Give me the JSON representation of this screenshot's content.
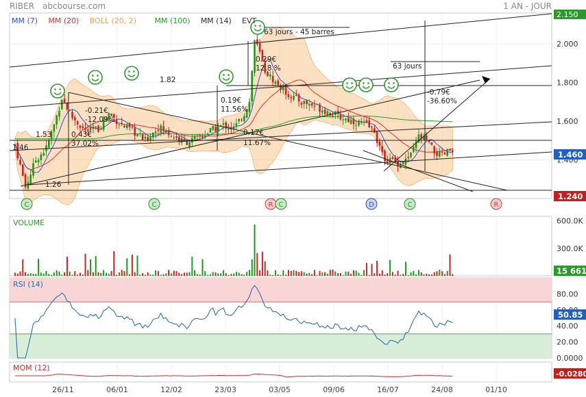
{
  "header": {
    "symbol": "RIBER",
    "source": "abcbourse.com",
    "period": "1 AN - JOUR"
  },
  "legend": [
    {
      "label": "MM (7)",
      "color": "#3050d0"
    },
    {
      "label": "MM (20)",
      "color": "#e03030"
    },
    {
      "label": "BOLL (20, 2)",
      "color": "#f0a050"
    },
    {
      "label": "MM (100)",
      "color": "#20a020"
    },
    {
      "label": "MM (14)",
      "color": "#303030"
    },
    {
      "label": "EVT",
      "color": "#303030"
    }
  ],
  "colors": {
    "up": "#1a9a1a",
    "down": "#d02020",
    "boll": "#f7c98f",
    "mm7": "#3050d0",
    "mm20": "#e03030",
    "mm100": "#20a020",
    "rsi": "#2060b0",
    "mom": "#c03030",
    "smiley": "#2a9a2a"
  },
  "chart_data": [
    {
      "type": "candlestick",
      "name": "price",
      "ylim": [
        1.2,
        2.16
      ],
      "y_ticks": [
        "2.000",
        "1.800",
        "1.600",
        "1.400"
      ],
      "x_ticks": [
        "26/11",
        "06/01",
        "12/02",
        "23/03",
        "03/05",
        "09/06",
        "16/07",
        "24/08",
        "01/10"
      ],
      "last_label": "1.460",
      "top_label": "2.150",
      "support_label": "1.240",
      "keyframes": [
        [
          0,
          1.48
        ],
        [
          4,
          1.26
        ],
        [
          8,
          1.4
        ],
        [
          12,
          1.46
        ],
        [
          15,
          1.58
        ],
        [
          18,
          1.72
        ],
        [
          22,
          1.62
        ],
        [
          27,
          1.55
        ],
        [
          32,
          1.56
        ],
        [
          36,
          1.64
        ],
        [
          41,
          1.58
        ],
        [
          45,
          1.55
        ],
        [
          50,
          1.5
        ],
        [
          55,
          1.57
        ],
        [
          60,
          1.53
        ],
        [
          65,
          1.49
        ],
        [
          70,
          1.51
        ],
        [
          75,
          1.55
        ],
        [
          80,
          1.58
        ],
        [
          84,
          1.56
        ],
        [
          88,
          1.64
        ],
        [
          90,
          1.7
        ],
        [
          92,
          2.02
        ],
        [
          94,
          1.95
        ],
        [
          96,
          1.86
        ],
        [
          100,
          1.8
        ],
        [
          105,
          1.74
        ],
        [
          110,
          1.7
        ],
        [
          115,
          1.68
        ],
        [
          120,
          1.65
        ],
        [
          125,
          1.62
        ],
        [
          130,
          1.6
        ],
        [
          135,
          1.58
        ],
        [
          138,
          1.55
        ],
        [
          141,
          1.42
        ],
        [
          144,
          1.4
        ],
        [
          148,
          1.38
        ],
        [
          152,
          1.42
        ],
        [
          155,
          1.52
        ],
        [
          158,
          1.5
        ],
        [
          161,
          1.44
        ],
        [
          164,
          1.42
        ],
        [
          168,
          1.46
        ]
      ],
      "annotations": [
        {
          "text": "63 jours - 45 barres"
        },
        {
          "text": "63 jours"
        },
        {
          "text": "1.82"
        },
        {
          "text": "1.53"
        },
        {
          "text": "1.46"
        },
        {
          "text": "1.26"
        },
        {
          "text": "0.43€"
        },
        {
          "text": "37.02%"
        },
        {
          "text": "-0.21€"
        },
        {
          "text": "-12.09%"
        },
        {
          "text": "0.19€"
        },
        {
          "text": "11.56%"
        },
        {
          "text": "0.17€"
        },
        {
          "text": "11.67%"
        },
        {
          "text": "0.29€"
        },
        {
          "text": "12.8.%"
        },
        {
          "text": "-0.79€"
        },
        {
          "text": "-36.60%"
        }
      ],
      "events": [
        {
          "label": "C",
          "kind": "C"
        },
        {
          "label": "C",
          "kind": "C"
        },
        {
          "label": "R",
          "kind": "R"
        },
        {
          "label": "C",
          "kind": "C"
        },
        {
          "label": "D",
          "kind": "D"
        },
        {
          "label": "C",
          "kind": "C"
        },
        {
          "label": "R",
          "kind": "R"
        }
      ]
    },
    {
      "type": "bar",
      "name": "VOLUME",
      "title": "VOLUME",
      "ylim": [
        0,
        650000
      ],
      "y_ticks": [
        "600.0K",
        "300.0K"
      ],
      "last_label": "15 661"
    },
    {
      "type": "line",
      "name": "RSI (14)",
      "title": "RSI (14)",
      "ylim": [
        0,
        100
      ],
      "y_ticks": [
        "80.00",
        "60.00",
        "40.00",
        "20.00",
        "0.0000"
      ],
      "overbought": 70,
      "oversold": 30,
      "last_label": "50.85"
    },
    {
      "type": "line",
      "name": "MOM (12)",
      "title": "MOM (12)",
      "last_label": "-0.0280"
    }
  ]
}
